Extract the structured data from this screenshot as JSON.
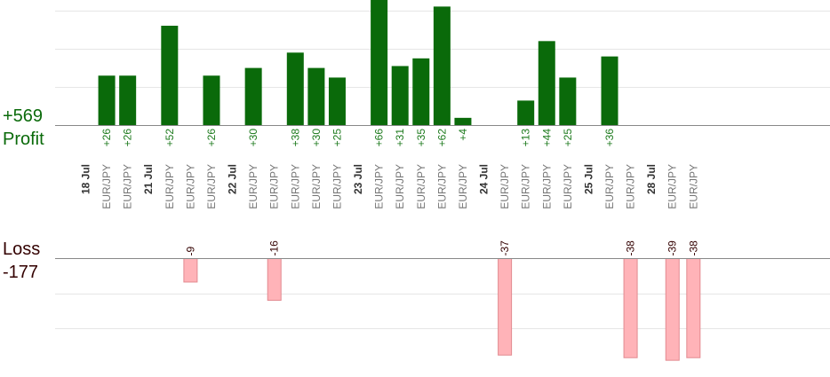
{
  "chart_data": {
    "type": "bar",
    "profit_label": "Profit",
    "loss_label": "Loss",
    "profit_total": "+569",
    "loss_total": "-177",
    "colors": {
      "profit": "#0a6a0a",
      "loss": "#ffb3b8",
      "loss_border": "#e28a90",
      "profit_text": "#1c7a1c",
      "axis_text": "#777777",
      "date_text": "#333333",
      "loss_label_color": "#330000"
    },
    "date_labels": [
      "18 Jul",
      "21 Jul",
      "22 Jul",
      "23 Jul",
      "24 Jul",
      "25 Jul",
      "28 Jul"
    ],
    "slots": [
      {
        "date": "18 Jul"
      },
      {
        "pair": "EUR/JPY",
        "profit": 26
      },
      {
        "pair": "EUR/JPY",
        "profit": 26
      },
      {
        "date": "21 Jul"
      },
      {
        "pair": "EUR/JPY",
        "profit": 52
      },
      {
        "pair": "EUR/JPY",
        "loss": -9
      },
      {
        "pair": "EUR/JPY",
        "profit": 26
      },
      {
        "date": "22 Jul"
      },
      {
        "pair": "EUR/JPY",
        "profit": 30
      },
      {
        "pair": "EUR/JPY",
        "loss": -16
      },
      {
        "pair": "EUR/JPY",
        "profit": 38
      },
      {
        "pair": "EUR/JPY",
        "profit": 30
      },
      {
        "pair": "EUR/JPY",
        "profit": 25
      },
      {
        "date": "23 Jul"
      },
      {
        "pair": "EUR/JPY",
        "profit": 66
      },
      {
        "pair": "EUR/JPY",
        "profit": 31
      },
      {
        "pair": "EUR/JPY",
        "profit": 35
      },
      {
        "pair": "EUR/JPY",
        "profit": 62
      },
      {
        "pair": "EUR/JPY",
        "profit": 4
      },
      {
        "date": "24 Jul"
      },
      {
        "pair": "EUR/JPY",
        "loss": -37
      },
      {
        "pair": "EUR/JPY",
        "profit": 13
      },
      {
        "pair": "EUR/JPY",
        "profit": 44
      },
      {
        "pair": "EUR/JPY",
        "profit": 25
      },
      {
        "date": "25 Jul"
      },
      {
        "pair": "EUR/JPY",
        "profit": 36
      },
      {
        "pair": "EUR/JPY",
        "loss": -38
      },
      {
        "date": "28 Jul"
      },
      {
        "pair": "EUR/JPY",
        "loss": -39
      },
      {
        "pair": "EUR/JPY",
        "loss": -38
      }
    ]
  }
}
